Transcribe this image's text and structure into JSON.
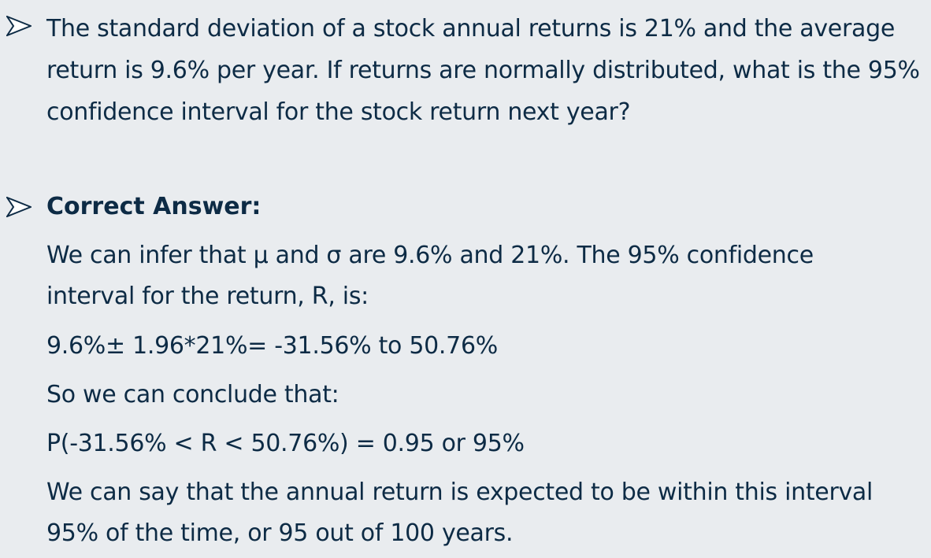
{
  "question": {
    "text": "The standard deviation of a stock annual returns is 21% and the average return is 9.6% per year. If returns are normally distributed, what is the 95% confidence interval for the stock return next year?"
  },
  "answer": {
    "heading": "Correct Answer:",
    "lines": [
      "We can infer that μ and σ are 9.6% and 21%. The 95% confidence",
      "interval for the return, R, is:",
      "9.6%± 1.96*21%= -31.56% to 50.76%",
      "So we can conclude that:",
      "P(-31.56% < R < 50.76%) = 0.95 or 95%",
      "We can say that the annual return is expected to be within this interval",
      "95% of the time, or 95 out of 100 years."
    ]
  },
  "icons": {
    "bullet": "arrowhead-bullet-icon"
  }
}
